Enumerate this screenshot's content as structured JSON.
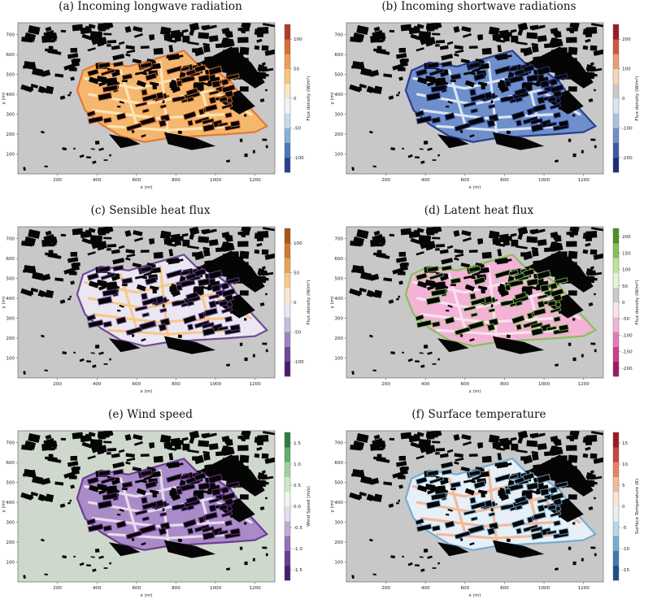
{
  "panels": [
    {
      "id": "a",
      "title": "(a) Incoming longwave radiation",
      "legend": {
        "label": "Flux density (W/m²)",
        "ticks": [
          "100",
          "50",
          "0",
          "-50",
          "-100"
        ],
        "colors": [
          "#2b3f8f",
          "#4a78b7",
          "#86b1d6",
          "#c7ddee",
          "#eef4f8",
          "#fbe6c2",
          "#f8c57e",
          "#f19b4f",
          "#dc6a36",
          "#b23a2a"
        ]
      },
      "palette": {
        "bg": "#c8c8c8",
        "district": "#f5b76d",
        "road": "#fde4b4",
        "edge": "#e07a3a"
      }
    },
    {
      "id": "b",
      "title": "(b) Incoming shortwave radiations",
      "legend": {
        "label": "Flux density (W/m²)",
        "ticks": [
          "200",
          "100",
          "0",
          "-100",
          "-200"
        ],
        "colors": [
          "#1d2d7a",
          "#3b5aa6",
          "#6e8fcb",
          "#a8c0e2",
          "#d9e5f3",
          "#c9c9c9",
          "#f7d5b7",
          "#ec9c72",
          "#cc5a3f",
          "#9b1c25"
        ]
      },
      "palette": {
        "bg": "#c8c8c8",
        "district": "#6e8fcb",
        "road": "#d9e5f3",
        "edge": "#2b3f8f"
      }
    },
    {
      "id": "c",
      "title": "(c) Sensible heat flux",
      "legend": {
        "label": "Flux density (W/m²)",
        "ticks": [
          "100",
          "50",
          "0",
          "-50",
          "-100"
        ],
        "colors": [
          "#4b1d6f",
          "#6d4a99",
          "#9a86bf",
          "#c6bddd",
          "#ebe7f2",
          "#fbe8cf",
          "#f7c88c",
          "#e9a155",
          "#cf7a2c",
          "#a8570f"
        ]
      },
      "palette": {
        "bg": "#c8c8c8",
        "district": "#ebe7f2",
        "road": "#f7c88c",
        "edge": "#6d4a99"
      }
    },
    {
      "id": "d",
      "title": "(d) Latent heat flux",
      "legend": {
        "label": "Flux density (W/m²)",
        "ticks": [
          "200",
          "150",
          "100",
          "50",
          "0",
          "-50",
          "-100",
          "-150",
          "-200"
        ],
        "colors": [
          "#9c1a62",
          "#c7418c",
          "#e57ab7",
          "#f3b2d6",
          "#fbe1ee",
          "#c9c9c9",
          "#e6f3d4",
          "#bfe19b",
          "#86c05a",
          "#4e8f2a"
        ]
      },
      "palette": {
        "bg": "#c8c8c8",
        "district": "#f3b2d6",
        "road": "#fbe1ee",
        "edge": "#86c05a"
      }
    },
    {
      "id": "e",
      "title": "(e) Wind speed",
      "legend": {
        "label": "Wind Speed (m/s)",
        "ticks": [
          "1.5",
          "1.0",
          "0.5",
          "0.0",
          "-0.5",
          "-1.0",
          "-1.5"
        ],
        "colors": [
          "#4b1d6f",
          "#6d3c93",
          "#9473b3",
          "#c1abd3",
          "#e6ddee",
          "#eef6ea",
          "#cfe8c6",
          "#9fd19a",
          "#5fae67",
          "#2e7d3f"
        ]
      },
      "palette": {
        "bg": "#cfd8cc",
        "district": "#a98cc7",
        "road": "#e6ddee",
        "edge": "#6d3c93"
      }
    },
    {
      "id": "f",
      "title": "(f) Surface temperature",
      "legend": {
        "label": "Surface Temperature (K)",
        "ticks": [
          "15",
          "10",
          "5",
          "0",
          "-5",
          "-10",
          "-15"
        ],
        "colors": [
          "#214d87",
          "#3f79b1",
          "#78abd1",
          "#b8d6ea",
          "#e6f0f6",
          "#fbe3d4",
          "#f5b89a",
          "#e58167",
          "#c9453f",
          "#9b1c25"
        ]
      },
      "palette": {
        "bg": "#c8c8c8",
        "district": "#e6f0f6",
        "road": "#f5b89a",
        "edge": "#78abd1"
      }
    }
  ],
  "axes": {
    "x": {
      "label": "x (m)",
      "ticks": [
        "200",
        "400",
        "600",
        "800",
        "1000",
        "1200"
      ],
      "range": [
        0,
        1300
      ]
    },
    "y": {
      "label": "y (m)",
      "ticks": [
        "100",
        "200",
        "300",
        "400",
        "500",
        "600",
        "700"
      ],
      "range": [
        0,
        760
      ]
    }
  }
}
